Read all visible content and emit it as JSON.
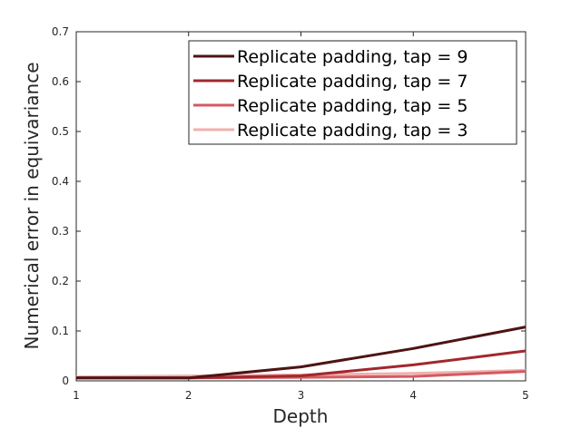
{
  "chart_data": {
    "type": "line",
    "title": "",
    "xlabel": "Depth",
    "ylabel": "Numerical error in equivariance",
    "x": [
      1,
      2,
      3,
      4,
      5
    ],
    "xlim": [
      1,
      5
    ],
    "ylim": [
      0,
      0.7
    ],
    "xticks": [
      "1",
      "2",
      "3",
      "4",
      "5"
    ],
    "yticks": [
      "0",
      "0.1",
      "0.2",
      "0.3",
      "0.4",
      "0.5",
      "0.6",
      "0.7"
    ],
    "grid": false,
    "legend_position": "top-right",
    "series": [
      {
        "name": "Replicate padding, tap = 9",
        "color": "#4d1414",
        "values": [
          0.006,
          0.006,
          0.028,
          0.065,
          0.108
        ]
      },
      {
        "name": "Replicate padding, tap = 7",
        "color": "#a1282d",
        "values": [
          0.006,
          0.006,
          0.01,
          0.032,
          0.06
        ]
      },
      {
        "name": "Replicate padding, tap = 5",
        "color": "#d45a60",
        "values": [
          0.006,
          0.006,
          0.007,
          0.009,
          0.019
        ]
      },
      {
        "name": "Replicate padding, tap = 3",
        "color": "#f0b0ae",
        "values": [
          0.008,
          0.01,
          0.012,
          0.015,
          0.021
        ]
      }
    ]
  }
}
